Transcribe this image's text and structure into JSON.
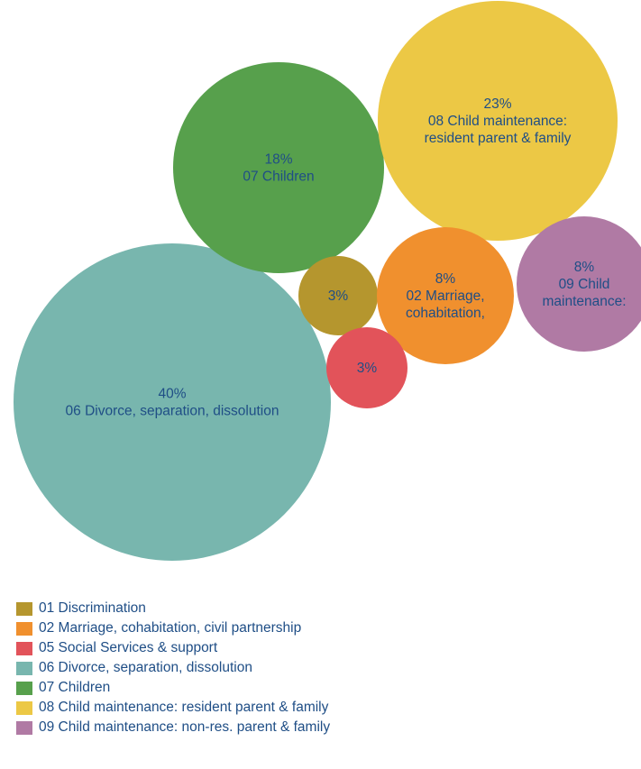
{
  "chart_data": {
    "type": "bubble",
    "unit": "%",
    "series": [
      {
        "key": "01",
        "name": "01 Discrimination",
        "value": 3,
        "color": "#b5962e",
        "label_lines": [
          "3%"
        ]
      },
      {
        "key": "02",
        "name": "02 Marriage, cohabitation, civil partnership",
        "value": 8,
        "color": "#f0902e",
        "label_lines": [
          "8%",
          "02 Marriage,",
          "cohabitation,"
        ]
      },
      {
        "key": "05",
        "name": "05 Social Services & support",
        "value": 3,
        "color": "#e2535a",
        "label_lines": [
          "3%"
        ]
      },
      {
        "key": "06",
        "name": "06 Divorce, separation, dissolution",
        "value": 40,
        "color": "#78b6ae",
        "label_lines": [
          "40%",
          "06 Divorce, separation, dissolution"
        ]
      },
      {
        "key": "07",
        "name": "07 Children",
        "value": 18,
        "color": "#57a04c",
        "label_lines": [
          "18%",
          "07 Children"
        ]
      },
      {
        "key": "08",
        "name": "08 Child maintenance: resident parent & family",
        "value": 23,
        "color": "#ecc845",
        "label_lines": [
          "23%",
          "08 Child maintenance:",
          "resident parent & family"
        ]
      },
      {
        "key": "09",
        "name": "09 Child maintenance: non-res. parent & family",
        "value": 8,
        "color": "#b07aa4",
        "label_lines": [
          "8%",
          "09 Child",
          "maintenance:"
        ]
      }
    ]
  }
}
